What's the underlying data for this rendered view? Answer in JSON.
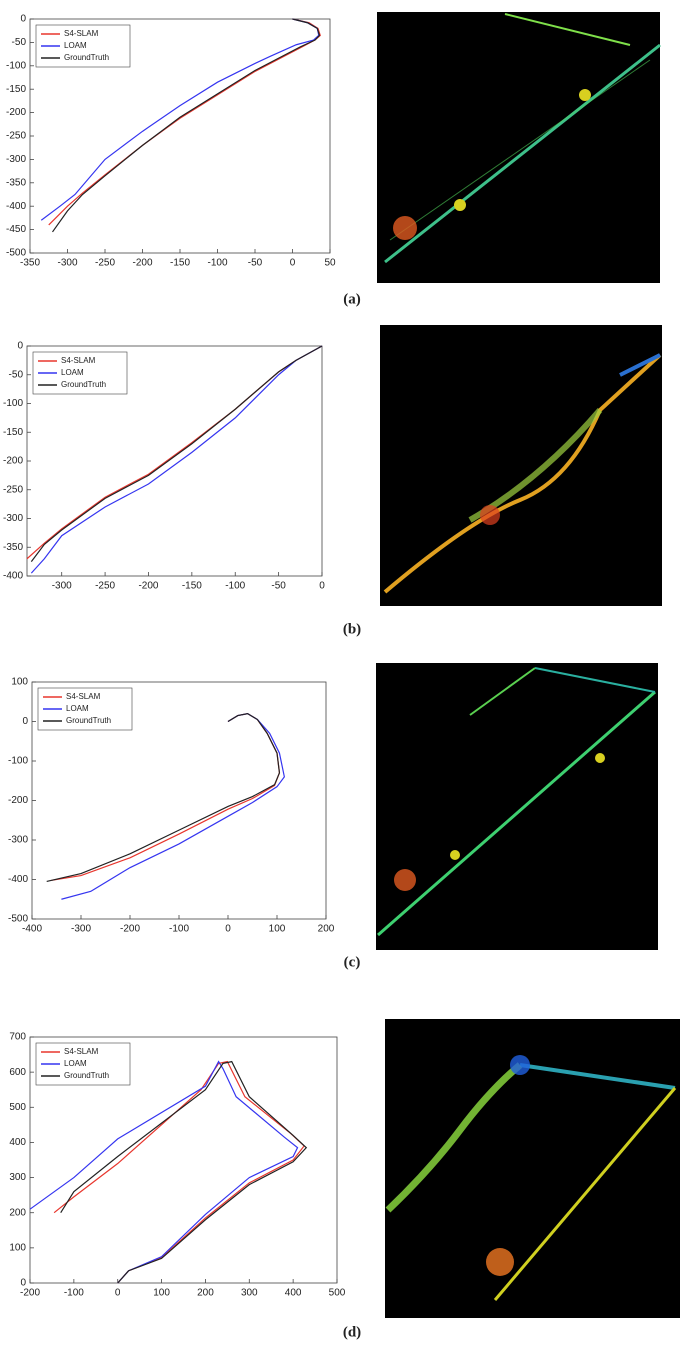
{
  "chart_data": [
    {
      "type": "line",
      "caption": "(a)",
      "legend": "upper left",
      "xlim": [
        -350,
        50
      ],
      "xticks": [
        -350,
        -300,
        -250,
        -200,
        -150,
        -100,
        -50,
        0,
        50
      ],
      "ylim": [
        -500,
        0
      ],
      "yticks": [
        -500,
        -450,
        -400,
        -350,
        -300,
        -250,
        -200,
        -150,
        -100,
        -50,
        0
      ],
      "series": [
        {
          "name": "S4-SLAM",
          "color": "#e8362d",
          "x": [
            0,
            22,
            34,
            37,
            30,
            10,
            -20,
            -50,
            -100,
            -150,
            -200,
            -250,
            -280,
            -300,
            -325
          ],
          "values": [
            0,
            -8,
            -20,
            -35,
            -45,
            -62,
            -87,
            -112,
            -162,
            -212,
            -270,
            -333,
            -372,
            -400,
            -440
          ]
        },
        {
          "name": "LOAM",
          "color": "#3535f0",
          "x": [
            0,
            20,
            33,
            35,
            28,
            5,
            -30,
            -50,
            -100,
            -150,
            -200,
            -250,
            -290,
            -310,
            -335
          ],
          "values": [
            0,
            -8,
            -20,
            -35,
            -45,
            -55,
            -80,
            -95,
            -135,
            -185,
            -240,
            -300,
            -375,
            -400,
            -430
          ]
        },
        {
          "name": "GroundTruth",
          "color": "#222222",
          "x": [
            0,
            20,
            33,
            36,
            30,
            10,
            -20,
            -50,
            -100,
            -150,
            -200,
            -250,
            -280,
            -300,
            -320
          ],
          "values": [
            0,
            -8,
            -20,
            -35,
            -45,
            -60,
            -85,
            -110,
            -160,
            -210,
            -270,
            -335,
            -375,
            -410,
            -455
          ]
        }
      ]
    },
    {
      "type": "line",
      "caption": "(b)",
      "legend": "upper left",
      "xlim": [
        -340,
        0
      ],
      "xticks": [
        -300,
        -250,
        -200,
        -150,
        -100,
        -50,
        0
      ],
      "ylim": [
        -400,
        0
      ],
      "yticks": [
        -400,
        -350,
        -300,
        -250,
        -200,
        -150,
        -100,
        -50,
        0
      ],
      "series": [
        {
          "name": "S4-SLAM",
          "color": "#e8362d",
          "x": [
            0,
            -30,
            -50,
            -100,
            -150,
            -200,
            -250,
            -300,
            -320,
            -340
          ],
          "values": [
            0,
            -25,
            -45,
            -110,
            -168,
            -223,
            -263,
            -318,
            -343,
            -370
          ]
        },
        {
          "name": "LOAM",
          "color": "#3535f0",
          "x": [
            0,
            -30,
            -50,
            -100,
            -150,
            -200,
            -250,
            -300,
            -320,
            -335
          ],
          "values": [
            0,
            -25,
            -50,
            -125,
            -185,
            -240,
            -280,
            -330,
            -370,
            -395
          ]
        },
        {
          "name": "GroundTruth",
          "color": "#222222",
          "x": [
            0,
            -30,
            -50,
            -100,
            -150,
            -200,
            -250,
            -300,
            -320,
            -335
          ],
          "values": [
            0,
            -25,
            -45,
            -110,
            -170,
            -225,
            -265,
            -320,
            -345,
            -375
          ]
        }
      ]
    },
    {
      "type": "line",
      "caption": "(c)",
      "legend": "upper left",
      "xlim": [
        -400,
        200
      ],
      "xticks": [
        -400,
        -300,
        -200,
        -100,
        0,
        100,
        200
      ],
      "ylim": [
        -500,
        100
      ],
      "yticks": [
        -500,
        -400,
        -300,
        -200,
        -100,
        0,
        100
      ],
      "series": [
        {
          "name": "S4-SLAM",
          "color": "#e8362d",
          "x": [
            0,
            20,
            40,
            60,
            80,
            100,
            105,
            95,
            50,
            0,
            -100,
            -200,
            -300,
            -360
          ],
          "values": [
            0,
            15,
            20,
            5,
            -30,
            -80,
            -130,
            -162,
            -195,
            -222,
            -285,
            -345,
            -390,
            -402
          ]
        },
        {
          "name": "LOAM",
          "color": "#3535f0",
          "x": [
            0,
            20,
            40,
            60,
            85,
            105,
            115,
            100,
            50,
            0,
            -100,
            -200,
            -280,
            -340
          ],
          "values": [
            0,
            15,
            20,
            5,
            -30,
            -80,
            -140,
            -165,
            -205,
            -240,
            -310,
            -370,
            -430,
            -450
          ]
        },
        {
          "name": "GroundTruth",
          "color": "#222222",
          "x": [
            0,
            20,
            40,
            60,
            80,
            100,
            105,
            95,
            50,
            0,
            -100,
            -200,
            -300,
            -370
          ],
          "values": [
            0,
            15,
            20,
            5,
            -30,
            -80,
            -130,
            -160,
            -190,
            -215,
            -275,
            -335,
            -385,
            -405
          ]
        }
      ]
    },
    {
      "type": "line",
      "caption": "(d)",
      "legend": "upper left",
      "xlim": [
        -200,
        500
      ],
      "xticks": [
        -200,
        -100,
        0,
        100,
        200,
        300,
        400,
        500
      ],
      "ylim": [
        0,
        700
      ],
      "yticks": [
        0,
        100,
        200,
        300,
        400,
        500,
        600,
        700
      ],
      "series": [
        {
          "name": "S4-SLAM",
          "color": "#e8362d",
          "x": [
            0,
            25,
            100,
            200,
            300,
            400,
            425,
            395,
            290,
            250,
            230,
            190,
            0,
            -100,
            -145
          ],
          "values": [
            0,
            35,
            72,
            185,
            285,
            350,
            390,
            425,
            530,
            630,
            625,
            550,
            340,
            245,
            200
          ]
        },
        {
          "name": "LOAM",
          "color": "#3535f0",
          "x": [
            0,
            25,
            100,
            200,
            300,
            400,
            410,
            380,
            270,
            240,
            230,
            200,
            0,
            -100,
            -200
          ],
          "values": [
            0,
            35,
            75,
            195,
            300,
            360,
            385,
            415,
            530,
            610,
            630,
            560,
            410,
            300,
            210
          ]
        },
        {
          "name": "GroundTruth",
          "color": "#222222",
          "x": [
            0,
            25,
            100,
            200,
            300,
            400,
            430,
            400,
            300,
            260,
            240,
            200,
            0,
            -100,
            -130
          ],
          "values": [
            0,
            35,
            70,
            180,
            280,
            345,
            385,
            420,
            530,
            630,
            625,
            550,
            360,
            260,
            200
          ]
        }
      ]
    }
  ]
}
